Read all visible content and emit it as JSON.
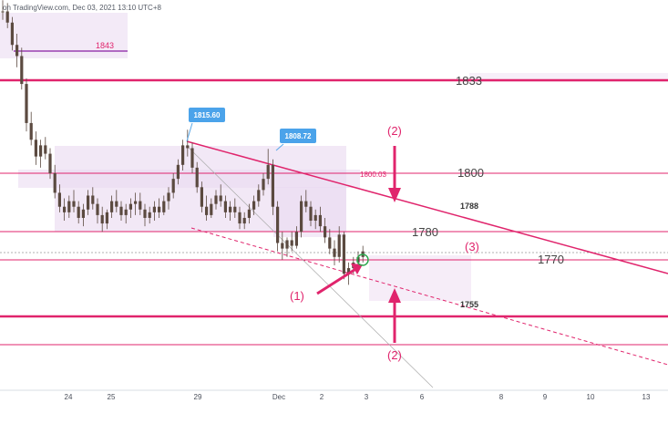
{
  "header": {
    "text": "on TradingView.com, Dec 03, 2021 13:10 UTC+8"
  },
  "colors": {
    "pink": "#e0246c",
    "lightPink": "#f0a0c0",
    "shade": "#ead8f0",
    "candle": "#5b4a40",
    "axisText": "#4a4f5a"
  },
  "chart_data": {
    "type": "candlestick",
    "x_ticks": [
      "24",
      "25",
      "29",
      "Dec",
      "2",
      "3",
      "6",
      "8",
      "9",
      "10",
      "13"
    ],
    "levels": [
      {
        "label": "1843",
        "value": 1843
      },
      {
        "label": "1833",
        "value": 1833
      },
      {
        "label": "1800",
        "value": 1800
      },
      {
        "label": "1800.03",
        "value": 1800.03
      },
      {
        "label": "1788",
        "value": 1788
      },
      {
        "label": "1780",
        "value": 1780
      },
      {
        "label": "1770",
        "value": 1770
      },
      {
        "label": "1755",
        "value": 1755
      }
    ],
    "price_callouts": [
      {
        "label": "1815.60",
        "value": 1815.6,
        "date": "29"
      },
      {
        "label": "1808.72",
        "value": 1808.72,
        "date": "Dec"
      }
    ],
    "annotations": [
      "(1)",
      "(2)",
      "(2)",
      "(3)"
    ],
    "ohlc": [
      [
        1858,
        1862,
        1855,
        1858
      ],
      [
        1858,
        1861,
        1852,
        1854
      ],
      [
        1854,
        1856,
        1844,
        1846
      ],
      [
        1846,
        1850,
        1838,
        1842
      ],
      [
        1842,
        1845,
        1830,
        1832
      ],
      [
        1832,
        1834,
        1815,
        1818
      ],
      [
        1818,
        1822,
        1810,
        1812
      ],
      [
        1812,
        1815,
        1803,
        1806
      ],
      [
        1806,
        1812,
        1802,
        1810
      ],
      [
        1810,
        1813,
        1805,
        1807
      ],
      [
        1807,
        1809,
        1798,
        1800
      ],
      [
        1800,
        1803,
        1791,
        1793
      ],
      [
        1793,
        1796,
        1786,
        1788
      ],
      [
        1788,
        1791,
        1783,
        1786
      ],
      [
        1786,
        1792,
        1784,
        1790
      ],
      [
        1790,
        1794,
        1786,
        1788
      ],
      [
        1788,
        1790,
        1782,
        1784
      ],
      [
        1784,
        1789,
        1781,
        1787
      ],
      [
        1787,
        1794,
        1785,
        1792
      ],
      [
        1792,
        1795,
        1787,
        1789
      ],
      [
        1789,
        1791,
        1782,
        1785
      ],
      [
        1785,
        1788,
        1779,
        1782
      ],
      [
        1782,
        1787,
        1780,
        1786
      ],
      [
        1786,
        1792,
        1784,
        1790
      ],
      [
        1790,
        1794,
        1786,
        1788
      ],
      [
        1788,
        1790,
        1783,
        1785
      ],
      [
        1785,
        1789,
        1782,
        1787
      ],
      [
        1787,
        1791,
        1784,
        1789
      ],
      [
        1789,
        1793,
        1785,
        1790
      ],
      [
        1790,
        1793,
        1785,
        1787
      ],
      [
        1787,
        1789,
        1781,
        1784
      ],
      [
        1784,
        1788,
        1782,
        1786
      ],
      [
        1786,
        1790,
        1783,
        1788
      ],
      [
        1788,
        1791,
        1784,
        1786
      ],
      [
        1786,
        1792,
        1785,
        1790
      ],
      [
        1790,
        1795,
        1787,
        1793
      ],
      [
        1793,
        1800,
        1791,
        1798
      ],
      [
        1798,
        1805,
        1796,
        1803
      ],
      [
        1803,
        1812,
        1801,
        1810
      ],
      [
        1810,
        1815.6,
        1806,
        1809
      ],
      [
        1809,
        1811,
        1800,
        1802
      ],
      [
        1802,
        1804,
        1793,
        1795
      ],
      [
        1795,
        1797,
        1786,
        1788
      ],
      [
        1788,
        1792,
        1783,
        1785
      ],
      [
        1785,
        1791,
        1784,
        1789
      ],
      [
        1789,
        1794,
        1787,
        1792
      ],
      [
        1792,
        1796,
        1788,
        1790
      ],
      [
        1790,
        1792,
        1784,
        1786
      ],
      [
        1786,
        1790,
        1783,
        1788
      ],
      [
        1788,
        1791,
        1784,
        1786
      ],
      [
        1786,
        1788,
        1780,
        1782
      ],
      [
        1782,
        1786,
        1780,
        1784
      ],
      [
        1784,
        1789,
        1782,
        1787
      ],
      [
        1787,
        1792,
        1785,
        1790
      ],
      [
        1790,
        1796,
        1788,
        1794
      ],
      [
        1794,
        1800,
        1792,
        1798
      ],
      [
        1798,
        1808.72,
        1796,
        1803
      ],
      [
        1803,
        1805,
        1785,
        1788
      ],
      [
        1788,
        1790,
        1772,
        1775
      ],
      [
        1775,
        1779,
        1769,
        1773
      ],
      [
        1773,
        1777,
        1770,
        1776
      ],
      [
        1776,
        1779,
        1772,
        1774
      ],
      [
        1774,
        1781,
        1773,
        1779
      ],
      [
        1779,
        1792,
        1777,
        1790
      ],
      [
        1790,
        1794,
        1786,
        1788
      ],
      [
        1788,
        1790,
        1781,
        1783
      ],
      [
        1783,
        1787,
        1780,
        1785
      ],
      [
        1785,
        1788,
        1779,
        1781
      ],
      [
        1781,
        1784,
        1775,
        1777
      ],
      [
        1777,
        1780,
        1771,
        1773
      ],
      [
        1773,
        1776,
        1767,
        1770
      ],
      [
        1770,
        1781,
        1768,
        1778
      ],
      [
        1778,
        1779,
        1762,
        1764
      ],
      [
        1764,
        1768,
        1760,
        1766
      ],
      [
        1766,
        1770,
        1764,
        1768
      ],
      [
        1768,
        1772,
        1766,
        1770
      ],
      [
        1770,
        1774,
        1768,
        1772
      ]
    ]
  }
}
